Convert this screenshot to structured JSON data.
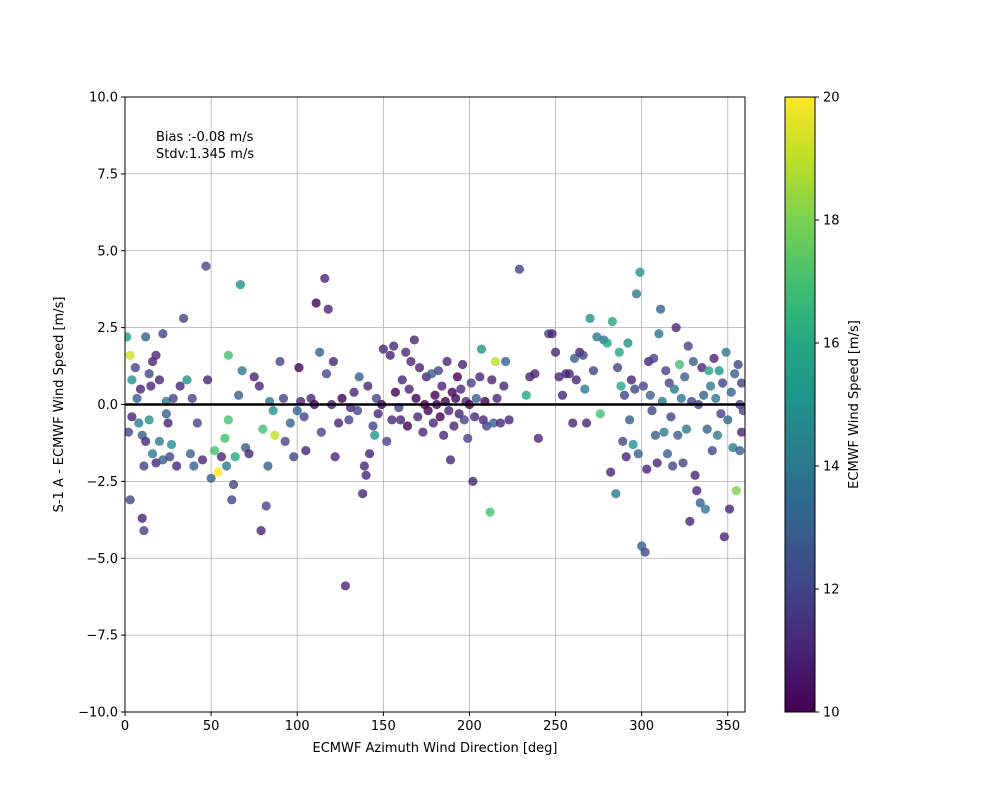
{
  "chart_data": {
    "type": "scatter",
    "xlabel": "ECMWF Azimuth Wind Direction [deg]",
    "ylabel": "S-1 A - ECMWF Wind Speed [m/s]",
    "xlim": [
      0,
      360
    ],
    "ylim": [
      -10,
      10
    ],
    "xticks": [
      0,
      50,
      100,
      150,
      200,
      250,
      300,
      350
    ],
    "yticks": [
      -10.0,
      -7.5,
      -5.0,
      -2.5,
      0.0,
      2.5,
      5.0,
      7.5,
      10.0
    ],
    "xtick_labels": [
      "0",
      "50",
      "100",
      "150",
      "200",
      "250",
      "300",
      "350"
    ],
    "ytick_labels": [
      "−10.0",
      "−7.5",
      "−5.0",
      "−2.5",
      "0.0",
      "2.5",
      "5.0",
      "7.5",
      "10.0"
    ],
    "grid": true,
    "reference_line_y": 0,
    "annotation": {
      "lines": [
        "Bias :-0.08 m/s",
        "Stdv:1.345 m/s"
      ]
    },
    "colorbar": {
      "label": "ECMWF Wind Speed [m/s]",
      "colormap": "viridis",
      "range": [
        10,
        20
      ],
      "ticks": [
        10,
        12,
        14,
        16,
        18,
        20
      ],
      "tick_labels": [
        "10",
        "12",
        "14",
        "16",
        "18",
        "20"
      ]
    },
    "points": [
      [
        1,
        2.2,
        15.5
      ],
      [
        3,
        1.6,
        19.2
      ],
      [
        4,
        0.8,
        15
      ],
      [
        6,
        1.2,
        12
      ],
      [
        7,
        0.2,
        13
      ],
      [
        9,
        0.5,
        11
      ],
      [
        2,
        -0.9,
        12
      ],
      [
        4,
        -0.4,
        11
      ],
      [
        8,
        -0.6,
        14
      ],
      [
        10,
        -1.0,
        13
      ],
      [
        11,
        -2.0,
        12
      ],
      [
        3,
        -3.1,
        12
      ],
      [
        10,
        -3.7,
        11
      ],
      [
        11,
        -4.1,
        12
      ],
      [
        12,
        -1.2,
        11
      ],
      [
        14,
        -0.5,
        15
      ],
      [
        15,
        0.6,
        11
      ],
      [
        16,
        1.4,
        11
      ],
      [
        18,
        1.6,
        11
      ],
      [
        20,
        0.8,
        11
      ],
      [
        22,
        2.3,
        12
      ],
      [
        24,
        0.1,
        14
      ],
      [
        25,
        -0.6,
        11
      ],
      [
        27,
        -1.3,
        15
      ],
      [
        12,
        2.2,
        13
      ],
      [
        14,
        1.0,
        12
      ],
      [
        16,
        -1.6,
        14
      ],
      [
        18,
        -1.9,
        11
      ],
      [
        20,
        -1.2,
        14
      ],
      [
        22,
        -1.8,
        13
      ],
      [
        24,
        -0.3,
        13
      ],
      [
        26,
        -1.7,
        12
      ],
      [
        28,
        0.2,
        12
      ],
      [
        30,
        -2.0,
        11
      ],
      [
        32,
        0.6,
        11
      ],
      [
        34,
        2.8,
        12
      ],
      [
        36,
        0.8,
        15
      ],
      [
        38,
        -1.6,
        13
      ],
      [
        39,
        0.2,
        12
      ],
      [
        40,
        -2.0,
        13
      ],
      [
        42,
        -0.6,
        12
      ],
      [
        45,
        -1.8,
        11
      ],
      [
        47,
        4.5,
        12
      ],
      [
        48,
        0.8,
        11
      ],
      [
        50,
        -2.4,
        13
      ],
      [
        52,
        -1.5,
        17
      ],
      [
        54,
        -2.2,
        20
      ],
      [
        56,
        -1.7,
        11
      ],
      [
        58,
        -1.1,
        17
      ],
      [
        59,
        -2.0,
        14
      ],
      [
        60,
        1.6,
        17
      ],
      [
        60,
        -0.5,
        17
      ],
      [
        62,
        -3.1,
        12
      ],
      [
        63,
        -2.6,
        12
      ],
      [
        64,
        -1.7,
        16
      ],
      [
        66,
        0.3,
        13
      ],
      [
        67,
        3.9,
        15
      ],
      [
        68,
        1.1,
        14
      ],
      [
        70,
        -1.4,
        13
      ],
      [
        72,
        -1.6,
        11
      ],
      [
        75,
        0.9,
        11
      ],
      [
        78,
        0.6,
        11
      ],
      [
        79,
        -4.1,
        11
      ],
      [
        80,
        -0.8,
        17
      ],
      [
        82,
        -3.3,
        12
      ],
      [
        83,
        -2.0,
        13
      ],
      [
        84,
        0.1,
        14
      ],
      [
        86,
        -0.2,
        15
      ],
      [
        87,
        -1.0,
        19
      ],
      [
        90,
        1.4,
        12
      ],
      [
        92,
        0.2,
        12
      ],
      [
        93,
        -1.2,
        12
      ],
      [
        96,
        -0.6,
        13
      ],
      [
        98,
        -1.7,
        12
      ],
      [
        100,
        -0.2,
        13
      ],
      [
        101,
        1.2,
        10
      ],
      [
        102,
        0.1,
        11
      ],
      [
        104,
        -0.4,
        12
      ],
      [
        105,
        -1.5,
        11
      ],
      [
        108,
        0.2,
        11
      ],
      [
        110,
        0.0,
        10
      ],
      [
        111,
        3.3,
        10
      ],
      [
        113,
        1.7,
        13
      ],
      [
        114,
        -0.9,
        12
      ],
      [
        116,
        4.1,
        11
      ],
      [
        117,
        1.0,
        12
      ],
      [
        118,
        3.1,
        11
      ],
      [
        120,
        0.0,
        11
      ],
      [
        121,
        1.4,
        11
      ],
      [
        122,
        -1.7,
        11
      ],
      [
        124,
        -0.6,
        11
      ],
      [
        126,
        0.2,
        10
      ],
      [
        128,
        -5.9,
        11
      ],
      [
        130,
        -0.5,
        12
      ],
      [
        131,
        -0.1,
        11
      ],
      [
        133,
        0.4,
        11
      ],
      [
        135,
        -0.2,
        12
      ],
      [
        136,
        0.9,
        13
      ],
      [
        138,
        -2.9,
        11
      ],
      [
        139,
        -2.0,
        11
      ],
      [
        140,
        -2.3,
        11
      ],
      [
        141,
        0.6,
        11
      ],
      [
        142,
        -1.6,
        11
      ],
      [
        144,
        -0.7,
        12
      ],
      [
        145,
        -1.0,
        15
      ],
      [
        146,
        0.2,
        12
      ],
      [
        147,
        -0.3,
        11
      ],
      [
        149,
        0.0,
        10
      ],
      [
        150,
        1.8,
        11
      ],
      [
        152,
        -1.2,
        12
      ],
      [
        154,
        1.6,
        11
      ],
      [
        155,
        -0.5,
        11
      ],
      [
        156,
        1.9,
        11
      ],
      [
        157,
        0.4,
        10
      ],
      [
        159,
        -0.1,
        12
      ],
      [
        160,
        -0.5,
        11
      ],
      [
        161,
        0.8,
        11
      ],
      [
        163,
        1.7,
        11
      ],
      [
        164,
        -0.7,
        10
      ],
      [
        165,
        0.5,
        11
      ],
      [
        166,
        1.4,
        11
      ],
      [
        168,
        2.1,
        11
      ],
      [
        169,
        0.2,
        10
      ],
      [
        170,
        -0.4,
        11
      ],
      [
        171,
        1.2,
        11
      ],
      [
        173,
        -0.9,
        11
      ],
      [
        174,
        0.0,
        10
      ],
      [
        175,
        0.9,
        11
      ],
      [
        176,
        -0.2,
        10
      ],
      [
        178,
        1.0,
        13
      ],
      [
        179,
        -0.6,
        11
      ],
      [
        180,
        0.3,
        10
      ],
      [
        181,
        0.0,
        10
      ],
      [
        182,
        1.1,
        12
      ],
      [
        183,
        -0.4,
        10
      ],
      [
        184,
        0.6,
        11
      ],
      [
        185,
        -1.0,
        11
      ],
      [
        186,
        0.1,
        10
      ],
      [
        187,
        1.4,
        11
      ],
      [
        188,
        -0.2,
        11
      ],
      [
        189,
        -1.8,
        11
      ],
      [
        190,
        0.4,
        10
      ],
      [
        191,
        -0.7,
        11
      ],
      [
        192,
        0.2,
        10
      ],
      [
        193,
        0.9,
        10
      ],
      [
        194,
        -0.3,
        11
      ],
      [
        195,
        0.5,
        11
      ],
      [
        196,
        1.3,
        11
      ],
      [
        197,
        -0.5,
        12
      ],
      [
        198,
        0.1,
        11
      ],
      [
        199,
        -1.1,
        12
      ],
      [
        200,
        0.0,
        10
      ],
      [
        201,
        0.7,
        12
      ],
      [
        202,
        -2.5,
        11
      ],
      [
        203,
        -0.4,
        11
      ],
      [
        204,
        0.2,
        13
      ],
      [
        206,
        0.9,
        11
      ],
      [
        207,
        1.8,
        15
      ],
      [
        208,
        -0.5,
        11
      ],
      [
        209,
        0.1,
        10
      ],
      [
        210,
        -0.7,
        12
      ],
      [
        212,
        -3.5,
        17
      ],
      [
        213,
        0.8,
        11
      ],
      [
        214,
        -0.6,
        13
      ],
      [
        215,
        1.4,
        19
      ],
      [
        216,
        0.2,
        11
      ],
      [
        218,
        -0.6,
        11
      ],
      [
        220,
        0.6,
        11
      ],
      [
        221,
        1.4,
        13
      ],
      [
        223,
        -0.5,
        11
      ],
      [
        229,
        4.4,
        12
      ],
      [
        233,
        0.3,
        16
      ],
      [
        235,
        0.9,
        11
      ],
      [
        238,
        1.0,
        11
      ],
      [
        240,
        -1.1,
        11
      ],
      [
        246,
        2.3,
        12
      ],
      [
        248,
        2.3,
        11
      ],
      [
        250,
        1.7,
        11
      ],
      [
        252,
        0.9,
        11
      ],
      [
        254,
        0.3,
        11
      ],
      [
        256,
        1.0,
        11
      ],
      [
        258,
        1.0,
        11
      ],
      [
        260,
        -0.6,
        11
      ],
      [
        261,
        1.5,
        13
      ],
      [
        262,
        0.8,
        11
      ],
      [
        264,
        1.7,
        11
      ],
      [
        266,
        1.6,
        12
      ],
      [
        267,
        0.5,
        14
      ],
      [
        268,
        -0.6,
        11
      ],
      [
        270,
        2.8,
        15
      ],
      [
        272,
        1.1,
        12
      ],
      [
        274,
        2.2,
        14
      ],
      [
        276,
        -0.3,
        17
      ],
      [
        278,
        2.1,
        14
      ],
      [
        280,
        2.0,
        16
      ],
      [
        282,
        -2.2,
        11
      ],
      [
        283,
        2.7,
        16
      ],
      [
        285,
        -2.9,
        14
      ],
      [
        286,
        1.2,
        12
      ],
      [
        287,
        1.7,
        16
      ],
      [
        288,
        0.6,
        16
      ],
      [
        289,
        -1.2,
        12
      ],
      [
        290,
        0.3,
        12
      ],
      [
        291,
        -1.7,
        11
      ],
      [
        292,
        2.0,
        15
      ],
      [
        293,
        -0.5,
        13
      ],
      [
        294,
        0.8,
        11
      ],
      [
        295,
        -1.3,
        15
      ],
      [
        296,
        0.5,
        12
      ],
      [
        297,
        3.6,
        14
      ],
      [
        298,
        -1.6,
        13
      ],
      [
        299,
        4.3,
        15
      ],
      [
        300,
        -4.6,
        13
      ],
      [
        301,
        0.6,
        12
      ],
      [
        302,
        -4.8,
        12
      ],
      [
        303,
        -2.1,
        11
      ],
      [
        304,
        1.4,
        11
      ],
      [
        305,
        0.3,
        13
      ],
      [
        306,
        -0.2,
        12
      ],
      [
        307,
        1.5,
        12
      ],
      [
        308,
        -1.0,
        13
      ],
      [
        309,
        -1.9,
        11
      ],
      [
        310,
        2.3,
        14
      ],
      [
        311,
        3.1,
        13
      ],
      [
        312,
        0.1,
        14
      ],
      [
        313,
        -0.9,
        14
      ],
      [
        314,
        1.1,
        12
      ],
      [
        315,
        -1.6,
        13
      ],
      [
        316,
        0.7,
        12
      ],
      [
        317,
        -0.4,
        12
      ],
      [
        318,
        -2.0,
        12
      ],
      [
        319,
        0.5,
        14
      ],
      [
        320,
        2.5,
        11
      ],
      [
        321,
        -1.0,
        13
      ],
      [
        322,
        1.3,
        17
      ],
      [
        323,
        0.2,
        14
      ],
      [
        324,
        -1.9,
        12
      ],
      [
        325,
        0.9,
        13
      ],
      [
        326,
        -0.8,
        14
      ],
      [
        327,
        1.9,
        12
      ],
      [
        328,
        -3.8,
        11
      ],
      [
        329,
        0.1,
        12
      ],
      [
        330,
        1.4,
        13
      ],
      [
        331,
        -2.3,
        11
      ],
      [
        332,
        -2.8,
        11
      ],
      [
        333,
        0.0,
        12
      ],
      [
        334,
        -3.2,
        13
      ],
      [
        335,
        1.2,
        11
      ],
      [
        336,
        0.3,
        13
      ],
      [
        337,
        -3.4,
        14
      ],
      [
        338,
        -0.8,
        13
      ],
      [
        339,
        1.1,
        16
      ],
      [
        340,
        0.6,
        14
      ],
      [
        341,
        -1.5,
        12
      ],
      [
        342,
        1.5,
        11
      ],
      [
        343,
        0.2,
        14
      ],
      [
        344,
        -1.0,
        14
      ],
      [
        345,
        1.1,
        15
      ],
      [
        346,
        -0.3,
        12
      ],
      [
        347,
        0.7,
        12
      ],
      [
        348,
        -4.3,
        11
      ],
      [
        349,
        1.7,
        14
      ],
      [
        350,
        -0.5,
        13
      ],
      [
        351,
        -3.4,
        11
      ],
      [
        352,
        0.4,
        13
      ],
      [
        353,
        -1.4,
        14
      ],
      [
        354,
        1.0,
        13
      ],
      [
        355,
        -2.8,
        18
      ],
      [
        356,
        1.3,
        12
      ],
      [
        357,
        0.0,
        12
      ],
      [
        358,
        -0.9,
        11
      ],
      [
        359,
        -0.2,
        12
      ],
      [
        357,
        -1.5,
        13
      ],
      [
        358,
        0.7,
        12
      ]
    ]
  }
}
